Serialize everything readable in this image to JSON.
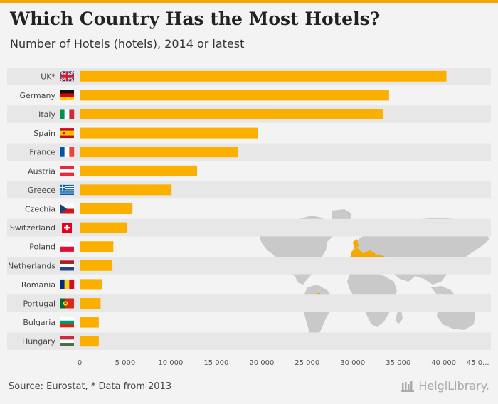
{
  "header": {
    "title": "Which Country Has the Most Hotels?",
    "subtitle": "Number of Hotels (hotels), 2014 or latest"
  },
  "footer": {
    "source": "Source: Eurostat, * Data from 2013",
    "brand": "HelgiLibrary."
  },
  "colors": {
    "bar": "#fbb000",
    "accent": "#f2a800",
    "map_land": "#c9c9c9",
    "map_highlight": "#f7a800"
  },
  "chart_data": {
    "type": "bar",
    "orientation": "horizontal",
    "title": "Which Country Has the Most Hotels?",
    "subtitle": "Number of Hotels (hotels), 2014 or latest",
    "categories": [
      "UK*",
      "Germany",
      "Italy",
      "Spain",
      "France",
      "Austria",
      "Greece",
      "Czechia",
      "Switzerland",
      "Poland",
      "Netherlands",
      "Romania",
      "Portugal",
      "Bulgaria",
      "Hungary"
    ],
    "flags": [
      "uk-flag-icon",
      "germany-flag-icon",
      "italy-flag-icon",
      "spain-flag-icon",
      "france-flag-icon",
      "austria-flag-icon",
      "greece-flag-icon",
      "czechia-flag-icon",
      "switzerland-flag-icon",
      "poland-flag-icon",
      "netherlands-flag-icon",
      "romania-flag-icon",
      "portugal-flag-icon",
      "bulgaria-flag-icon",
      "hungary-flag-icon"
    ],
    "values": [
      40300,
      34000,
      33300,
      19600,
      17400,
      12900,
      10100,
      5800,
      5200,
      3700,
      3600,
      2500,
      2300,
      2100,
      2100
    ],
    "xlim": [
      0,
      45000
    ],
    "ticks": [
      0,
      5000,
      10000,
      15000,
      20000,
      25000,
      30000,
      35000,
      40000,
      45000
    ],
    "tick_labels": [
      "0",
      "5 000",
      "10 000",
      "15 000",
      "20 000",
      "25 000",
      "30 000",
      "35 000",
      "40 000",
      "45 0..."
    ],
    "xlabel": "",
    "ylabel": "",
    "grid": false
  }
}
